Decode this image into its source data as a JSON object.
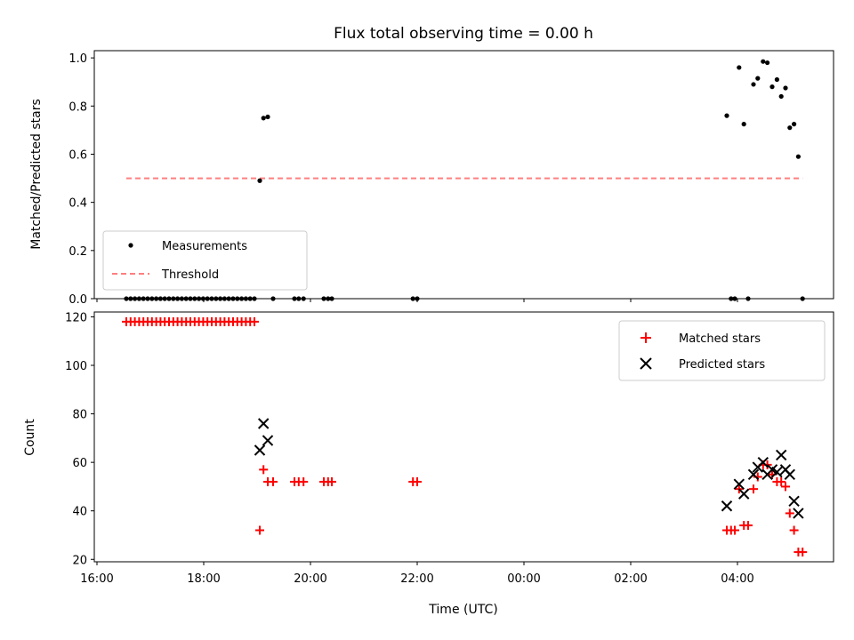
{
  "chart_data": {
    "title": "Flux total observing time = 0.00 h",
    "xlabel": "Time (UTC)",
    "x_unit": "hours",
    "xlim": [
      15.95,
      29.8
    ],
    "xticks": [
      {
        "value": 16,
        "label": "16:00"
      },
      {
        "value": 18,
        "label": "18:00"
      },
      {
        "value": 20,
        "label": "20:00"
      },
      {
        "value": 22,
        "label": "22:00"
      },
      {
        "value": 24,
        "label": "00:00"
      },
      {
        "value": 26,
        "label": "02:00"
      },
      {
        "value": 28,
        "label": "04:00"
      }
    ],
    "top": {
      "type": "scatter",
      "ylabel": "Matched/Predicted stars",
      "ylim": [
        0,
        1.03
      ],
      "yticks": [
        "0.0",
        "0.2",
        "0.4",
        "0.6",
        "0.8",
        "1.0"
      ],
      "threshold": {
        "name": "Threshold",
        "y": 0.5,
        "x": [
          16.55,
          29.22
        ],
        "color": "#ff7f7f"
      },
      "measurements": {
        "name": "Measurements",
        "color": "#000000",
        "x": [
          16.55,
          16.63,
          16.71,
          16.79,
          16.87,
          16.95,
          17.03,
          17.11,
          17.19,
          17.27,
          17.35,
          17.43,
          17.51,
          17.59,
          17.67,
          17.75,
          17.83,
          17.91,
          17.99,
          18.07,
          18.15,
          18.23,
          18.31,
          18.39,
          18.47,
          18.55,
          18.63,
          18.71,
          18.79,
          18.87,
          18.95,
          19.05,
          19.12,
          19.2,
          19.3,
          19.7,
          19.78,
          19.87,
          20.25,
          20.33,
          20.4,
          21.92,
          22.0,
          27.8,
          27.88,
          27.95,
          28.03,
          28.12,
          28.2,
          28.3,
          28.38,
          28.48,
          28.56,
          28.65,
          28.74,
          28.82,
          28.9,
          28.98,
          29.06,
          29.14,
          29.22
        ],
        "y": [
          0,
          0,
          0,
          0,
          0,
          0,
          0,
          0,
          0,
          0,
          0,
          0,
          0,
          0,
          0,
          0,
          0,
          0,
          0,
          0,
          0,
          0,
          0,
          0,
          0,
          0,
          0,
          0,
          0,
          0,
          0,
          0.49,
          0.75,
          0.755,
          0,
          0,
          0,
          0,
          0,
          0,
          0,
          0,
          0,
          0.76,
          0,
          0,
          0.96,
          0.725,
          0,
          0.89,
          0.915,
          0.985,
          0.98,
          0.88,
          0.91,
          0.84,
          0.875,
          0.71,
          0.725,
          0.59,
          0
        ]
      },
      "legend": {
        "position": "lower-left",
        "entries": [
          "Measurements",
          "Threshold"
        ]
      }
    },
    "bottom": {
      "type": "scatter",
      "ylabel": "Count",
      "ylim": [
        19,
        122
      ],
      "yticks": [
        "20",
        "40",
        "60",
        "80",
        "100",
        "120"
      ],
      "matched": {
        "name": "Matched stars",
        "color": "#ff0000",
        "x": [
          16.55,
          16.63,
          16.71,
          16.79,
          16.87,
          16.95,
          17.03,
          17.11,
          17.19,
          17.27,
          17.35,
          17.43,
          17.51,
          17.59,
          17.67,
          17.75,
          17.83,
          17.91,
          17.99,
          18.07,
          18.15,
          18.23,
          18.31,
          18.39,
          18.47,
          18.55,
          18.63,
          18.71,
          18.79,
          18.87,
          18.95,
          19.05,
          19.12,
          19.2,
          19.3,
          19.7,
          19.78,
          19.87,
          20.25,
          20.33,
          20.4,
          21.92,
          22.0,
          27.8,
          27.88,
          27.95,
          28.03,
          28.12,
          28.2,
          28.3,
          28.38,
          28.48,
          28.56,
          28.65,
          28.74,
          28.82,
          28.9,
          28.98,
          29.06,
          29.14,
          29.22
        ],
        "y": [
          118,
          118,
          118,
          118,
          118,
          118,
          118,
          118,
          118,
          118,
          118,
          118,
          118,
          118,
          118,
          118,
          118,
          118,
          118,
          118,
          118,
          118,
          118,
          118,
          118,
          118,
          118,
          118,
          118,
          118,
          118,
          32,
          57,
          52,
          52,
          52,
          52,
          52,
          52,
          52,
          52,
          52,
          52,
          32,
          32,
          32,
          49,
          34,
          34,
          49,
          54,
          59,
          59,
          55,
          52,
          52,
          50,
          39,
          32,
          23,
          23
        ]
      },
      "predicted": {
        "name": "Predicted stars",
        "color": "#000000",
        "x": [
          19.05,
          19.12,
          19.2,
          27.8,
          28.03,
          28.12,
          28.3,
          28.38,
          28.48,
          28.56,
          28.65,
          28.74,
          28.82,
          28.9,
          28.98,
          29.06,
          29.14
        ],
        "y": [
          65,
          76,
          69,
          42,
          51,
          47,
          55,
          58,
          60,
          55,
          57,
          56,
          63,
          57,
          55,
          44,
          39
        ]
      },
      "legend": {
        "position": "upper-right",
        "entries": [
          "Matched stars",
          "Predicted stars"
        ]
      }
    }
  }
}
